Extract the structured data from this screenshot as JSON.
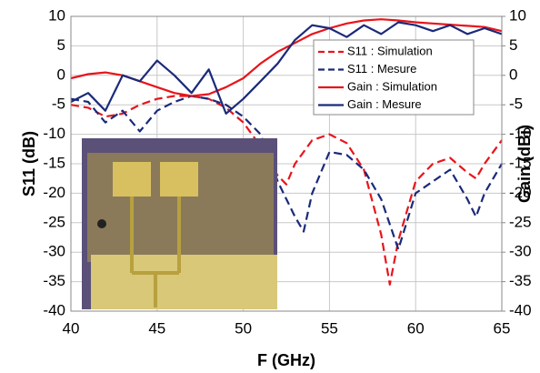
{
  "chart_data": {
    "type": "line",
    "x_label": "F (GHz)",
    "y_label": "S11 (dB)",
    "y2_label": "Gain (dBi)",
    "xlim": [
      40,
      65
    ],
    "xticks": [
      40,
      45,
      50,
      55,
      60,
      65
    ],
    "ylim": [
      -40,
      10
    ],
    "yticks": [
      10,
      5,
      0,
      -5,
      -10,
      -15,
      -20,
      -25,
      -30,
      -35,
      -40
    ],
    "y2lim": [
      -40,
      10
    ],
    "y2ticks": [
      10,
      5,
      0,
      -5,
      -10,
      -15,
      -20,
      -25,
      -30,
      -35,
      -40
    ],
    "grid": true,
    "legend": "upper right",
    "series": [
      {
        "name": "S11 : Simulation",
        "color": "#e8141b",
        "style": "dashed",
        "x": [
          40,
          41,
          42,
          43,
          44,
          45,
          46,
          47,
          48,
          49,
          50,
          51,
          52,
          52.5,
          53,
          54,
          55,
          56,
          57,
          58,
          58.5,
          59,
          60,
          61,
          62,
          63,
          63.5,
          64,
          65
        ],
        "values": [
          -5,
          -5.5,
          -7,
          -6.5,
          -5,
          -4,
          -3.5,
          -3.5,
          -4,
          -5.5,
          -8,
          -12,
          -17,
          -18.5,
          -15,
          -11,
          -10,
          -11.5,
          -16,
          -27,
          -35.5,
          -28,
          -18,
          -15,
          -14,
          -16.5,
          -17.5,
          -15,
          -11
        ]
      },
      {
        "name": "S11 : Mesure",
        "color": "#1a2a7a",
        "style": "dashed",
        "x": [
          40,
          41,
          42,
          43,
          44,
          45,
          46,
          47,
          48,
          49,
          50,
          51,
          52,
          53,
          53.5,
          54,
          55,
          56,
          57,
          58,
          59,
          60,
          61,
          62,
          63,
          63.5,
          64,
          65
        ],
        "values": [
          -4,
          -4.5,
          -8,
          -6,
          -9.5,
          -6,
          -4.5,
          -3.5,
          -4,
          -5,
          -7,
          -10,
          -18,
          -24,
          -26.5,
          -20,
          -13,
          -13.5,
          -16,
          -21,
          -29.5,
          -20,
          -18,
          -16,
          -21,
          -24,
          -20,
          -15
        ]
      },
      {
        "name": "Gain : Simulation",
        "color": "#e8141b",
        "style": "solid",
        "axis": "y2",
        "x": [
          40,
          41,
          42,
          43,
          44,
          45,
          46,
          47,
          48,
          49,
          50,
          51,
          52,
          53,
          54,
          55,
          56,
          57,
          58,
          59,
          60,
          61,
          62,
          63,
          64,
          65
        ],
        "values": [
          -0.5,
          0.2,
          0.5,
          0,
          -1,
          -2,
          -3,
          -3.5,
          -3.2,
          -2,
          -0.5,
          2,
          4,
          5.5,
          7,
          8,
          8.8,
          9.3,
          9.5,
          9.3,
          9,
          8.8,
          8.6,
          8.4,
          8.2,
          7.5
        ]
      },
      {
        "name": "Gain : Mesure",
        "color": "#1a2a7a",
        "style": "solid",
        "axis": "y2",
        "x": [
          40,
          41,
          42,
          43,
          44,
          45,
          46,
          47,
          48,
          49,
          50,
          51,
          52,
          53,
          54,
          55,
          56,
          57,
          58,
          59,
          60,
          61,
          62,
          63,
          64,
          65
        ],
        "values": [
          -4.5,
          -3,
          -6,
          0,
          -1,
          2.5,
          0,
          -3,
          1,
          -6.5,
          -4,
          -1,
          2,
          6,
          8.5,
          8,
          6.5,
          8.5,
          7,
          9,
          8.5,
          7.5,
          8.5,
          7,
          8,
          7
        ]
      }
    ]
  }
}
